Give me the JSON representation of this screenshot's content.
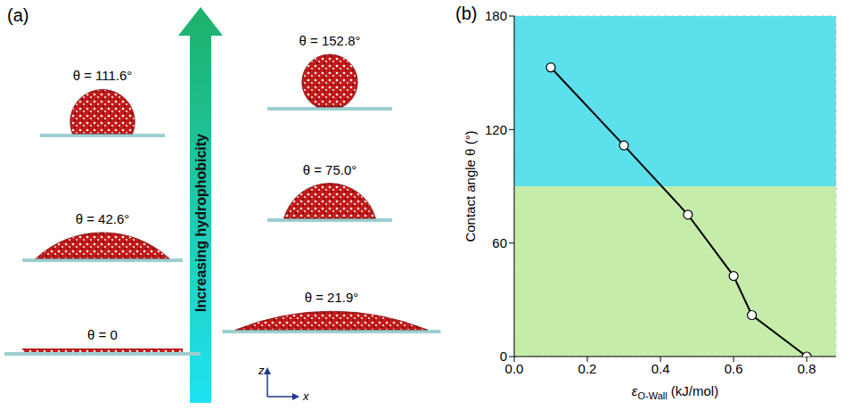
{
  "panel_a": {
    "label": "(a)",
    "arrow_label": "Increasing hydrophobicity",
    "axis_labels": [
      "z",
      "x"
    ],
    "droplets": [
      {
        "label": "θ = 152.8°",
        "angle": 152.8
      },
      {
        "label": "θ = 111.6°",
        "angle": 111.6
      },
      {
        "label": "θ = 75.0°",
        "angle": 75.0
      },
      {
        "label": "θ = 42.6°",
        "angle": 42.6
      },
      {
        "label": "θ = 21.9°",
        "angle": 21.9
      },
      {
        "label": "θ = 0",
        "angle": 0
      }
    ]
  },
  "chart_data": {
    "type": "line",
    "panel_label": "(b)",
    "x_label": {
      "base": "ε",
      "sub": "O-Wall",
      "rest": " (kJ/mol)"
    },
    "y_label": "Contact angle θ (°)",
    "x": [
      0.1,
      0.3,
      0.475,
      0.6,
      0.65,
      0.8
    ],
    "values": [
      152.8,
      111.6,
      75.0,
      42.6,
      21.9,
      0
    ],
    "color": "#000000",
    "marker": "circle",
    "xlim": [
      0,
      0.88
    ],
    "xticks": [
      {
        "value": 0,
        "label": "0.0"
      },
      0.2,
      0.4,
      0.6,
      0.8
    ],
    "ylim": [
      0,
      180
    ],
    "yticks": [
      0,
      60,
      120,
      180
    ],
    "grid": true,
    "regions": [
      {
        "from": 0,
        "to": 90,
        "color": "#c6ecaa"
      },
      {
        "from": 90,
        "to": 180,
        "color": "#5ce0ec"
      }
    ]
  }
}
